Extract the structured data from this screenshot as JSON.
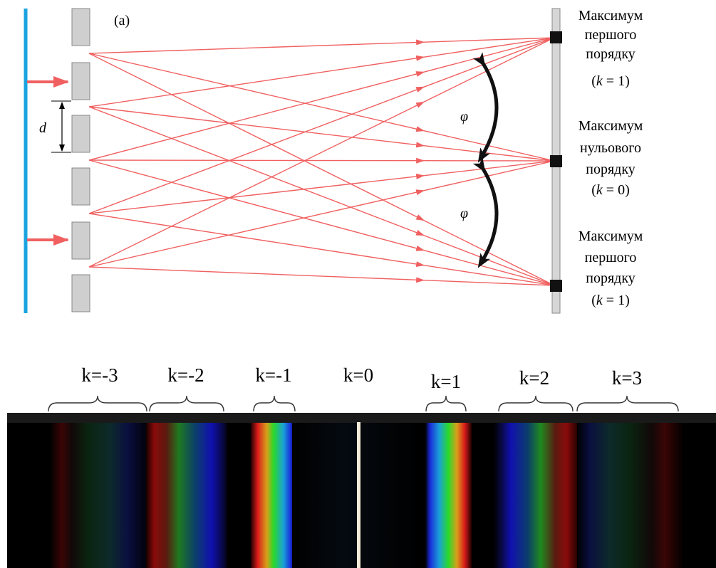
{
  "panel_label": "(a)",
  "slit_spacing_label": "d",
  "angle_label": "φ",
  "maxima": [
    {
      "line1": "Максимум",
      "line2": "першого",
      "line3": "порядку",
      "k_var": "k",
      "k_rest": " = 1)",
      "k_open": "("
    },
    {
      "line1": "Максимум",
      "line2": "нульового",
      "line3": "порядку",
      "k_var": "k",
      "k_rest": " = 0)",
      "k_open": "("
    },
    {
      "line1": "Максимум",
      "line2": "першого",
      "line3": "порядку",
      "k_var": "k",
      "k_rest": " = 1)",
      "k_open": "("
    }
  ],
  "spectrum_orders": [
    "k=-3",
    "k=-2",
    "k=-1",
    "k=0",
    "k=1",
    "k=2",
    "k=3"
  ],
  "colors": {
    "barrier": "#1aa3e0",
    "ray": "#f06060",
    "incident_arrow": "#f06060",
    "slit_block": "#cfcfcf",
    "screen": "#d6d6d6",
    "max_marker": "#111111",
    "spectrum_bg": "#000000",
    "zero_order_line": "#f3ead8"
  }
}
